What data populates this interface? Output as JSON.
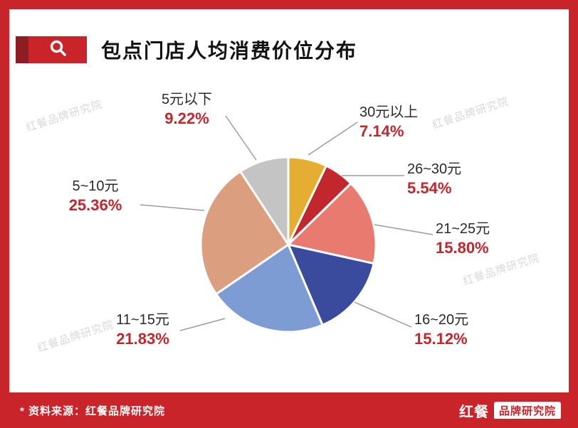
{
  "header": {
    "title": "包点门店人均消费价位分布"
  },
  "chart_data": {
    "type": "pie",
    "title": "包点门店人均消费价位分布",
    "categories": [
      "30元以上",
      "26~30元",
      "21~25元",
      "16~20元",
      "11~15元",
      "5~10元",
      "5元以下"
    ],
    "values": [
      7.14,
      5.54,
      15.8,
      15.12,
      21.83,
      25.36,
      9.22
    ],
    "value_labels": [
      "7.14%",
      "5.54%",
      "15.80%",
      "15.12%",
      "21.83%",
      "25.36%",
      "9.22%"
    ],
    "colors": [
      "#e6ad33",
      "#c1272d",
      "#e87a70",
      "#3a4a9c",
      "#7e9cd4",
      "#db9e7f",
      "#c4c4c4"
    ],
    "start_angle_deg": -90,
    "direction": "clockwise",
    "slice_gap_color": "#ffffff",
    "legend_position": "none",
    "label_name_color": "#2b2b2b",
    "label_value_color": "#c1272d"
  },
  "watermark": {
    "text": "红餐品牌研究院"
  },
  "footer": {
    "source": "* 资料来源：红餐品牌研究院",
    "logo_left": "红餐",
    "logo_right": "品牌研究院"
  },
  "accent_color": "#c9242a"
}
